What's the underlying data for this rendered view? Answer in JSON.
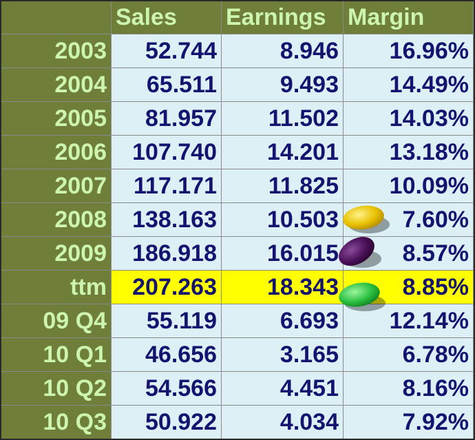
{
  "table": {
    "columns": [
      "Sales",
      "Earnings",
      "Margin"
    ],
    "rows": [
      [
        "2003",
        "52.744",
        "8.946",
        "16.96%"
      ],
      [
        "2004",
        "65.511",
        "9.493",
        "14.49%"
      ],
      [
        "2005",
        "81.957",
        "11.502",
        "14.03%"
      ],
      [
        "2006",
        "107.740",
        "14.201",
        "13.18%"
      ],
      [
        "2007",
        "117.171",
        "11.825",
        "10.09%"
      ],
      [
        "2008",
        "138.163",
        "10.503",
        "7.60%"
      ],
      [
        "2009",
        "186.918",
        "16.015",
        "8.57%"
      ],
      [
        "ttm",
        "207.263",
        "18.343",
        "8.85%"
      ],
      [
        "09 Q4",
        "55.119",
        "6.693",
        "12.14%"
      ],
      [
        "10 Q1",
        "46.656",
        "3.165",
        "6.78%"
      ],
      [
        "10 Q2",
        "54.566",
        "4.451",
        "8.16%"
      ],
      [
        "10 Q3",
        "50.922",
        "4.034",
        "7.92%"
      ]
    ],
    "highlight_row": 7,
    "highlight_color": "#ffff00"
  }
}
